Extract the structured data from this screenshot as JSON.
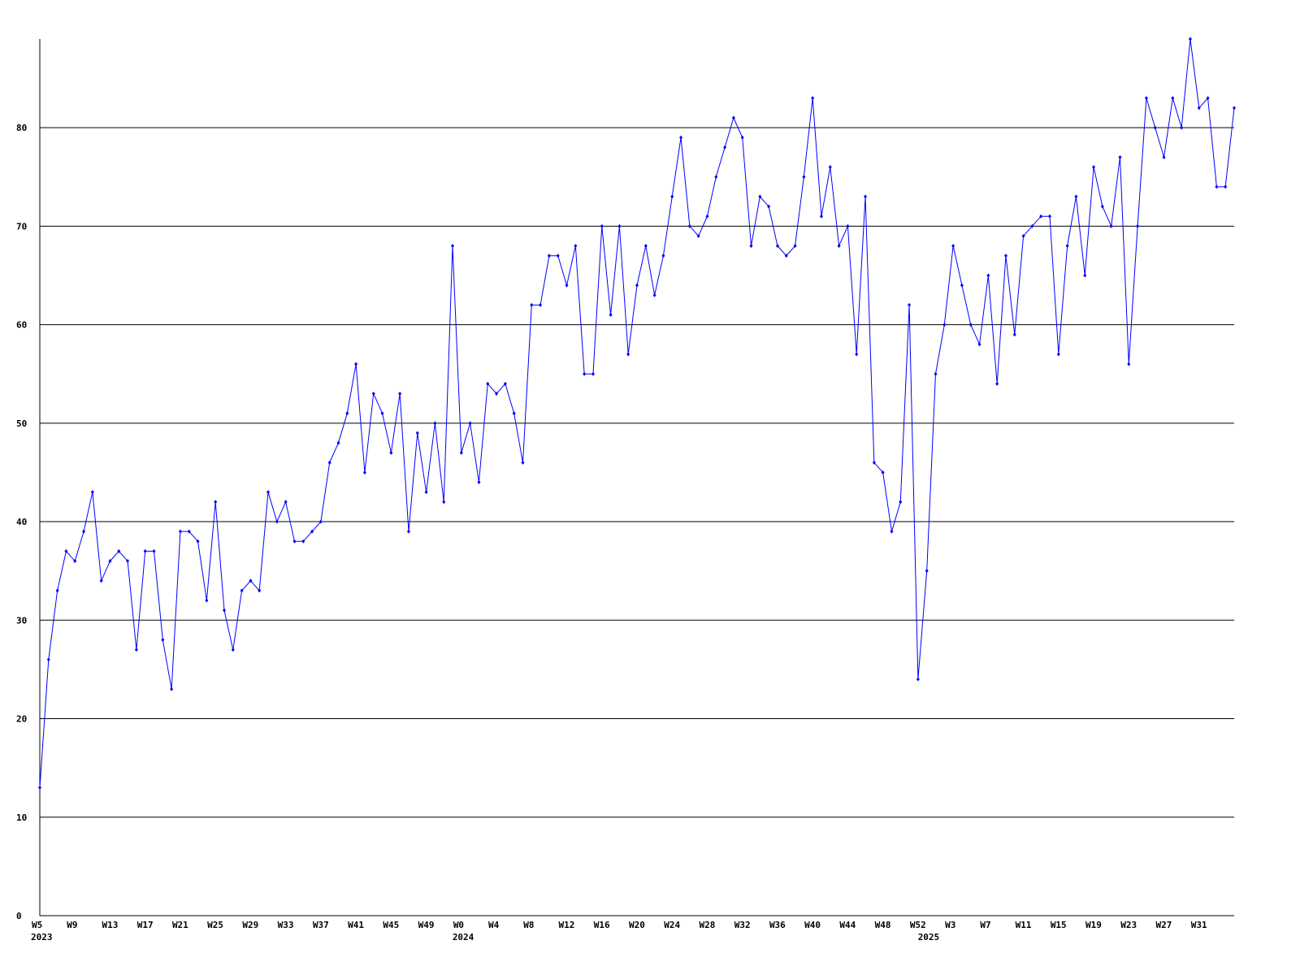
{
  "chart_data": {
    "type": "line",
    "categories": [
      "W5",
      null,
      null,
      null,
      "W9",
      null,
      null,
      null,
      "W13",
      null,
      null,
      null,
      "W17",
      null,
      null,
      null,
      "W21",
      null,
      null,
      null,
      "W25",
      null,
      null,
      null,
      "W29",
      null,
      null,
      null,
      "W33",
      null,
      null,
      null,
      "W37",
      null,
      null,
      null,
      "W41",
      null,
      null,
      null,
      "W45",
      null,
      null,
      null,
      "W49",
      null,
      null,
      null,
      "W0",
      null,
      null,
      null,
      "W4",
      null,
      null,
      null,
      "W8",
      null,
      null,
      null,
      "W12",
      null,
      null,
      null,
      "W16",
      null,
      null,
      null,
      "W20",
      null,
      null,
      null,
      "W24",
      null,
      null,
      null,
      "W28",
      null,
      null,
      null,
      "W32",
      null,
      null,
      null,
      "W36",
      null,
      null,
      null,
      "W40",
      null,
      null,
      null,
      "W44",
      null,
      null,
      null,
      "W48",
      null,
      null,
      null,
      "W52",
      null,
      null,
      null,
      "W3",
      null,
      null,
      null,
      "W7",
      null,
      null,
      null,
      "W11",
      null,
      null,
      null,
      "W15",
      null,
      null,
      null,
      "W19",
      null,
      null,
      null,
      "W23",
      null,
      null,
      null,
      "W27",
      null,
      null,
      null,
      "W31",
      null,
      null,
      null,
      null
    ],
    "year_labels": [
      "2023",
      null,
      null,
      null,
      null,
      null,
      null,
      null,
      null,
      null,
      null,
      null,
      null,
      null,
      null,
      null,
      null,
      null,
      null,
      null,
      null,
      null,
      null,
      null,
      null,
      null,
      null,
      null,
      null,
      null,
      null,
      null,
      null,
      null,
      null,
      null,
      null,
      null,
      null,
      null,
      null,
      null,
      null,
      null,
      null,
      null,
      null,
      null,
      "2024",
      null,
      null,
      null,
      null,
      null,
      null,
      null,
      null,
      null,
      null,
      null,
      null,
      null,
      null,
      null,
      null,
      null,
      null,
      null,
      null,
      null,
      null,
      null,
      null,
      null,
      null,
      null,
      null,
      null,
      null,
      null,
      null,
      null,
      null,
      null,
      null,
      null,
      null,
      null,
      null,
      null,
      null,
      null,
      null,
      null,
      null,
      null,
      null,
      null,
      null,
      null,
      null,
      "2025",
      null,
      null,
      null,
      null,
      null,
      null,
      null,
      null,
      null,
      null,
      null,
      null,
      null,
      null,
      null,
      null,
      null,
      null,
      null,
      null,
      null,
      null,
      null,
      null,
      null,
      null,
      null,
      null,
      null,
      null,
      null,
      null,
      null,
      null,
      null
    ],
    "series": [
      {
        "color": "#0000ff",
        "values": [
          13,
          26,
          33,
          37,
          36,
          39,
          43,
          34,
          36,
          37,
          36,
          27,
          37,
          37,
          28,
          23,
          39,
          39,
          38,
          32,
          42,
          31,
          27,
          33,
          34,
          33,
          43,
          40,
          42,
          38,
          38,
          39,
          40,
          46,
          48,
          51,
          56,
          45,
          53,
          51,
          47,
          53,
          39,
          49,
          43,
          50,
          42,
          68,
          47,
          50,
          44,
          54,
          53,
          54,
          51,
          46,
          62,
          62,
          67,
          67,
          64,
          68,
          55,
          55,
          70,
          61,
          70,
          57,
          64,
          68,
          63,
          67,
          73,
          79,
          70,
          69,
          71,
          75,
          78,
          81,
          79,
          68,
          73,
          72,
          68,
          67,
          68,
          75,
          83,
          71,
          76,
          68,
          70,
          57,
          73,
          46,
          45,
          39,
          42,
          62,
          24,
          35,
          55,
          60,
          68,
          64,
          60,
          58,
          65,
          54,
          67,
          59,
          69,
          70,
          71,
          71,
          57,
          68,
          73,
          65,
          76,
          72,
          70,
          77,
          56,
          70,
          83,
          80,
          77,
          83,
          80,
          89,
          82,
          83,
          74,
          74,
          82
        ]
      }
    ],
    "ylim": [
      0,
      89
    ],
    "yticks": [
      0,
      10,
      20,
      30,
      40,
      50,
      60,
      70,
      80
    ],
    "grid": true,
    "grid_color": "#000000",
    "axis_color": "#000000"
  }
}
